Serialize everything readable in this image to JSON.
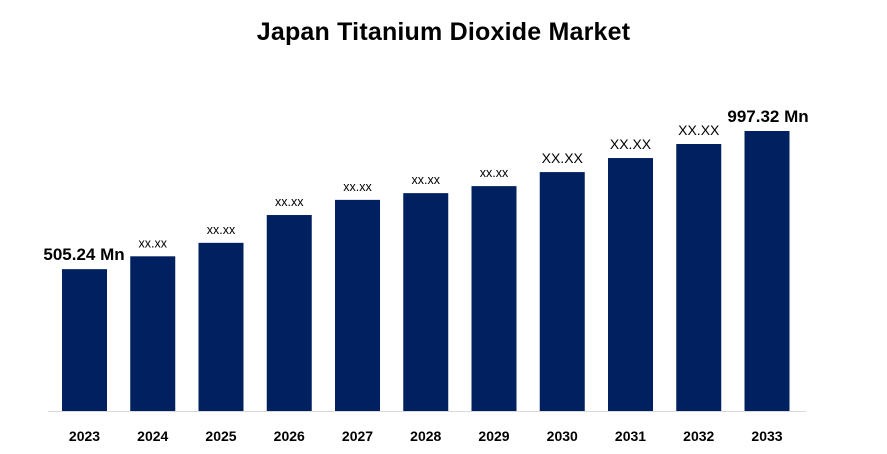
{
  "chart_data": {
    "type": "bar",
    "title": "Japan Titanium Dioxide Market",
    "xlabel": "",
    "ylabel": "",
    "categories": [
      "2023",
      "2024",
      "2025",
      "2026",
      "2027",
      "2028",
      "2029",
      "2030",
      "2031",
      "2032",
      "2033"
    ],
    "values": [
      505.24,
      551,
      599,
      698,
      752,
      776,
      801,
      851,
      901,
      951,
      997.32
    ],
    "data_labels": [
      "505.24 Mn",
      "xx.xx",
      "xx.xx",
      "xx.xx",
      "xx.xx",
      "xx.xx",
      "xx.xx",
      "XX.XX",
      "XX.XX",
      "XX.XX",
      "997.32 Mn"
    ],
    "ylim": [
      0,
      1130
    ],
    "grid": false,
    "legend": "none",
    "bar_color": "#002060"
  }
}
